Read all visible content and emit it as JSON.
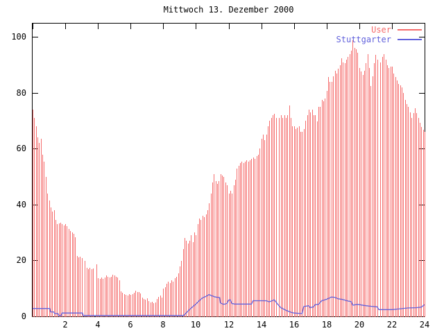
{
  "title": "Mittwoch 13. Dezember 2000",
  "legend": {
    "items": [
      {
        "label": "User",
        "color": "#f56b6b"
      },
      {
        "label": "Stuttgarter",
        "color": "#6161dc"
      }
    ]
  },
  "axes": {
    "x_tick_labels": [
      "2",
      "4",
      "6",
      "8",
      "10",
      "12",
      "14",
      "16",
      "18",
      "20",
      "22",
      "24"
    ],
    "x_tick_hours": [
      0,
      2,
      4,
      6,
      8,
      10,
      12,
      14,
      16,
      18,
      20,
      22,
      24
    ],
    "y_tick_labels": [
      "0",
      "20",
      "40",
      "60",
      "80",
      "100"
    ],
    "y_tick_values": [
      0,
      20,
      40,
      60,
      80,
      100
    ]
  },
  "colors": {
    "impulses": "#f56b6b",
    "line": "#6161dc",
    "axis": "#000000",
    "background": "#ffffff"
  },
  "chart_data": {
    "type": "bar",
    "subtype": "impulses-with-line-overlay",
    "title": "Mittwoch 13. Dezember 2000",
    "xlabel": "",
    "ylabel": "",
    "xlim": [
      0,
      24
    ],
    "ylim": [
      0,
      104.8
    ],
    "x_unit": "hour-of-day",
    "legend_position": "top-right-inside",
    "grid": false,
    "series": [
      {
        "name": "User",
        "style": "impulses",
        "color": "#f56b6b",
        "x_start": 0,
        "x_step": 0.1,
        "values": [
          74,
          71,
          68,
          64,
          62,
          63.5,
          58,
          55.5,
          50,
          44,
          41.5,
          39,
          37.5,
          38,
          34.5,
          33,
          33.2,
          33.5,
          33,
          32.6,
          33,
          32.2,
          31.4,
          30.6,
          30,
          29.5,
          28.4,
          21.5,
          21,
          21.3,
          20.8,
          0,
          20,
          17.3,
          17,
          17.5,
          17,
          17.2,
          0,
          18.7,
          13.6,
          13.3,
          13.8,
          13.4,
          13.9,
          14.6,
          14.2,
          13.8,
          14.2,
          15,
          14.6,
          14.2,
          13.8,
          13,
          9,
          8.5,
          8,
          7.8,
          7.5,
          7.9,
          7.6,
          8,
          8.4,
          9.1,
          8.8,
          8.6,
          8.2,
          6.7,
          6.2,
          5.9,
          6.4,
          5.4,
          4.9,
          5.2,
          4.7,
          5.1,
          6.2,
          6.9,
          7.4,
          6.7,
          9.9,
          10.4,
          11.6,
          12.4,
          11.9,
          12.9,
          12.4,
          13.6,
          14.1,
          15.3,
          18,
          20,
          24,
          28,
          27,
          26,
          27,
          29,
          26.5,
          30,
          29,
          33,
          35,
          34.5,
          36,
          35.5,
          36.5,
          38,
          40.5,
          44,
          48,
          51,
          48.5,
          47.5,
          48.5,
          51,
          50.5,
          50,
          48,
          47,
          44,
          45,
          44,
          47,
          49,
          53,
          54,
          55,
          55.5,
          55,
          55.5,
          56,
          55.5,
          56,
          56.5,
          57,
          56.5,
          57.3,
          58,
          60,
          63.5,
          65,
          63,
          65,
          68,
          70,
          71,
          72,
          72.6,
          71,
          0,
          71,
          72,
          71,
          72,
          71,
          72,
          75.4,
          71,
          68,
          68,
          67,
          67.5,
          68,
          66,
          66,
          67,
          70,
          72,
          74,
          73,
          74,
          72,
          72,
          69.7,
          75,
          75,
          77.6,
          77,
          78,
          80.8,
          85.7,
          84,
          84,
          86,
          88,
          87,
          88.7,
          90,
          92.4,
          91,
          90.7,
          92,
          93,
          94,
          95.2,
          98.9,
          96,
          95.6,
          94.4,
          89,
          87.7,
          86.5,
          88,
          90.7,
          94,
          89,
          82.5,
          86,
          90.7,
          93.6,
          92,
          0,
          91,
          93,
          94,
          92,
          90,
          89,
          89.5,
          89.5,
          87,
          85.7,
          84.5,
          83.3,
          82.7,
          82,
          80,
          77.6,
          76,
          75,
          73,
          71,
          72.8,
          74.6,
          72.8,
          71,
          69.4,
          67.7,
          66.8,
          66
        ]
      },
      {
        "name": "Stuttgarter",
        "style": "line",
        "color": "#6161dc",
        "points": [
          [
            0,
            2.8
          ],
          [
            1.05,
            2.8
          ],
          [
            1.1,
            1.6
          ],
          [
            1.3,
            1.6
          ],
          [
            1.35,
            1.0
          ],
          [
            1.55,
            1.0
          ],
          [
            1.6,
            0.3
          ],
          [
            1.75,
            0.3
          ],
          [
            1.8,
            1.2
          ],
          [
            3.05,
            1.2
          ],
          [
            3.1,
            0.3
          ],
          [
            9.25,
            0.3
          ],
          [
            9.4,
            1.2
          ],
          [
            9.6,
            2.4
          ],
          [
            9.8,
            3.4
          ],
          [
            10.0,
            4.4
          ],
          [
            10.2,
            5.6
          ],
          [
            10.4,
            6.6
          ],
          [
            10.6,
            7.1
          ],
          [
            10.8,
            7.8
          ],
          [
            11.0,
            7.3
          ],
          [
            11.2,
            6.9
          ],
          [
            11.45,
            6.7
          ],
          [
            11.5,
            4.8
          ],
          [
            11.7,
            4.3
          ],
          [
            11.9,
            4.6
          ],
          [
            12.0,
            5.8
          ],
          [
            12.1,
            5.9
          ],
          [
            12.2,
            4.6
          ],
          [
            12.4,
            4.4
          ],
          [
            13.4,
            4.4
          ],
          [
            13.5,
            5.6
          ],
          [
            14.3,
            5.6
          ],
          [
            14.5,
            5.2
          ],
          [
            14.8,
            5.9
          ],
          [
            15.0,
            4.4
          ],
          [
            15.2,
            3.1
          ],
          [
            15.5,
            2.2
          ],
          [
            15.8,
            1.5
          ],
          [
            16.0,
            1.2
          ],
          [
            16.5,
            1.0
          ],
          [
            16.6,
            3.5
          ],
          [
            16.9,
            3.8
          ],
          [
            17.0,
            3.1
          ],
          [
            17.2,
            3.4
          ],
          [
            17.3,
            4.2
          ],
          [
            17.5,
            4.3
          ],
          [
            17.7,
            5.6
          ],
          [
            18.0,
            6.1
          ],
          [
            18.3,
            6.9
          ],
          [
            18.5,
            6.8
          ],
          [
            18.7,
            6.3
          ],
          [
            19.0,
            6.0
          ],
          [
            19.3,
            5.5
          ],
          [
            19.5,
            5.3
          ],
          [
            19.6,
            4.0
          ],
          [
            19.9,
            4.3
          ],
          [
            20.3,
            3.9
          ],
          [
            20.7,
            3.6
          ],
          [
            21.1,
            3.4
          ],
          [
            21.2,
            2.4
          ],
          [
            22.0,
            2.4
          ],
          [
            22.5,
            2.7
          ],
          [
            23.0,
            3.0
          ],
          [
            23.5,
            3.1
          ],
          [
            23.8,
            3.3
          ],
          [
            24,
            4.2
          ]
        ]
      }
    ]
  }
}
